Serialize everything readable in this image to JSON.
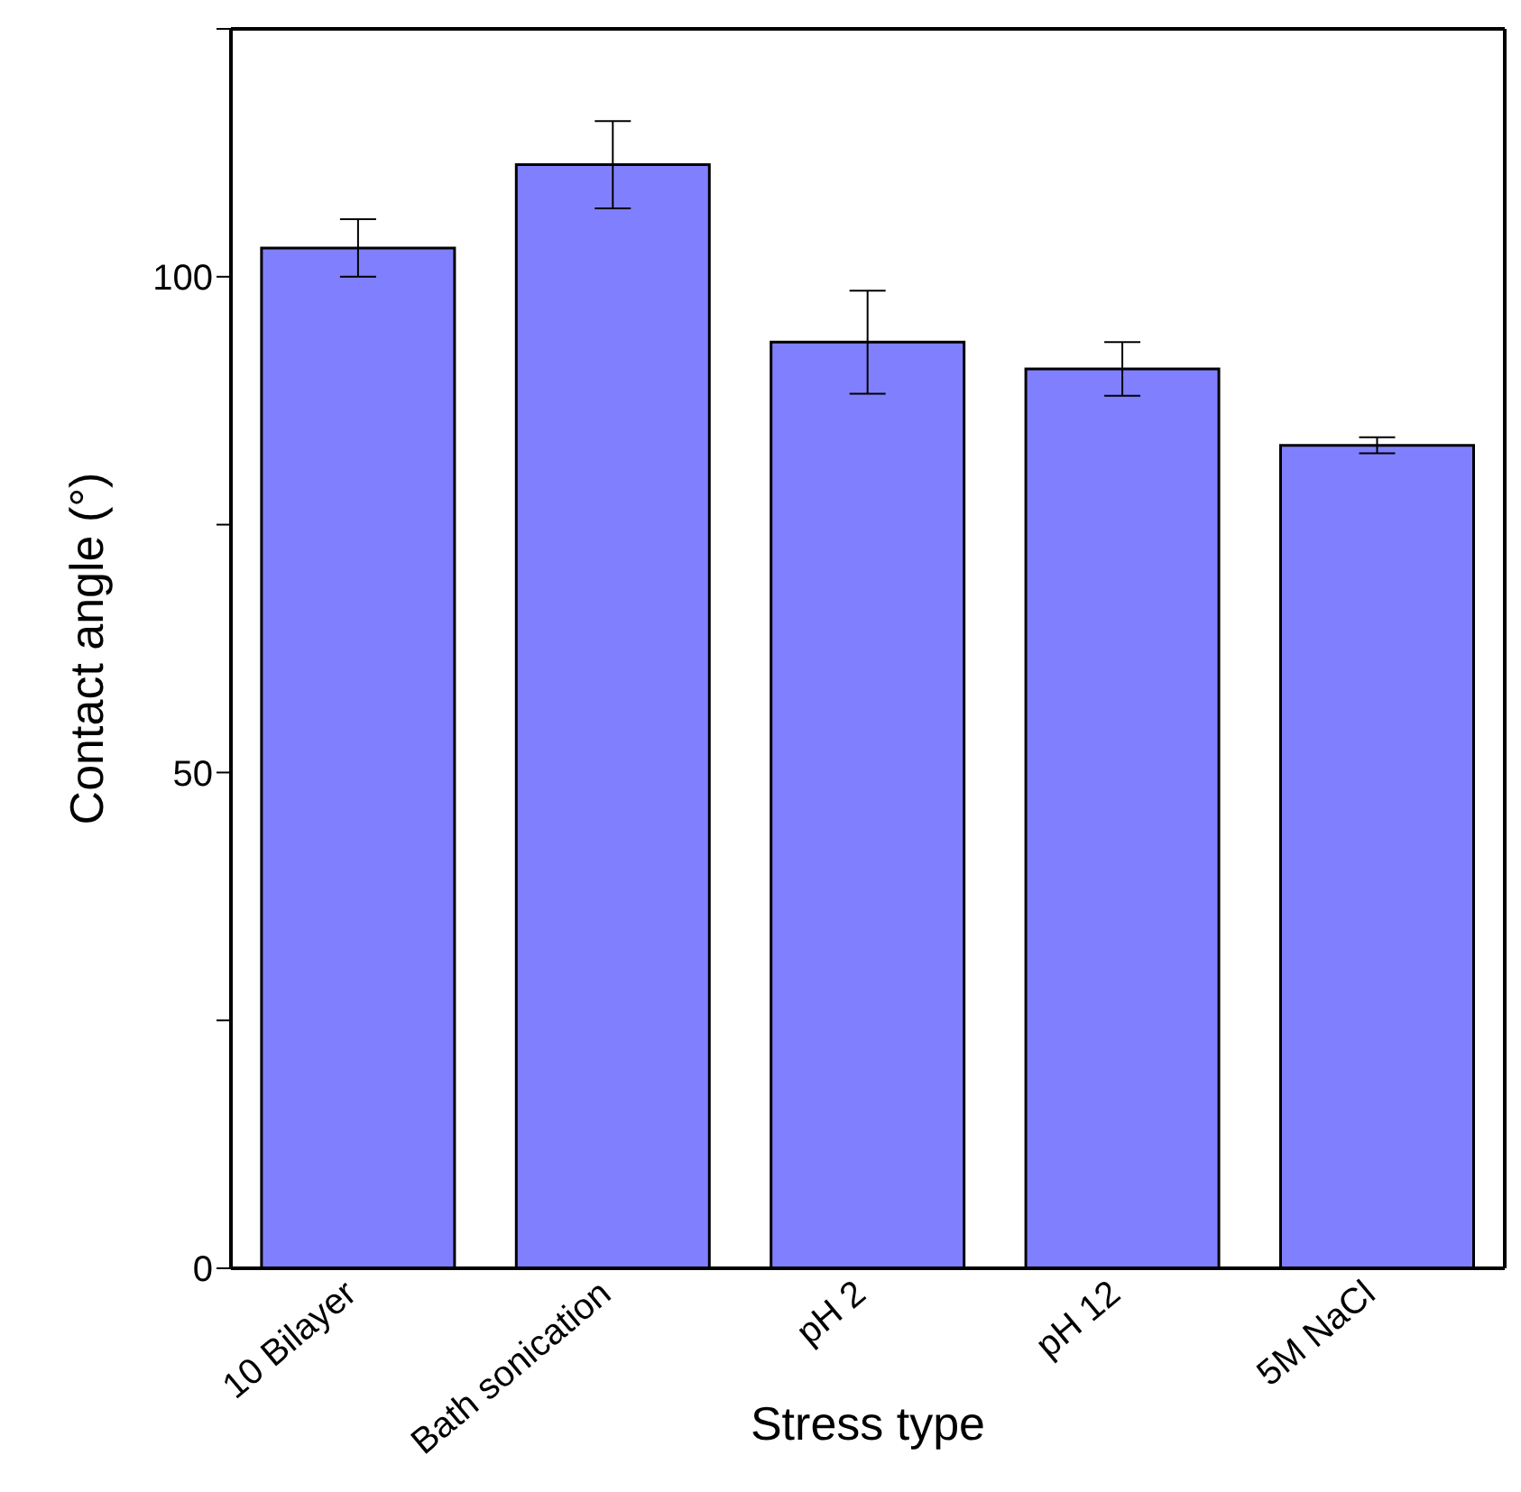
{
  "chart_data": {
    "type": "bar",
    "xlabel": "Stress type",
    "ylabel": "Contact angle (°)",
    "categories": [
      "10 Bilayer",
      "Bath sonication",
      "pH 2",
      "pH 12",
      "5M NaCl"
    ],
    "values": [
      102.9,
      111.3,
      93.4,
      90.7,
      83.0
    ],
    "errors": [
      2.9,
      4.4,
      5.2,
      2.7,
      0.8
    ],
    "color": "#8080ff",
    "ylim": [
      0,
      125
    ],
    "yticks": [
      0,
      {
        "value": 25,
        "label": null
      },
      50,
      {
        "value": 75,
        "label": null
      },
      100,
      {
        "value": 125,
        "label": null
      }
    ],
    "grid": false,
    "legend": false
  }
}
